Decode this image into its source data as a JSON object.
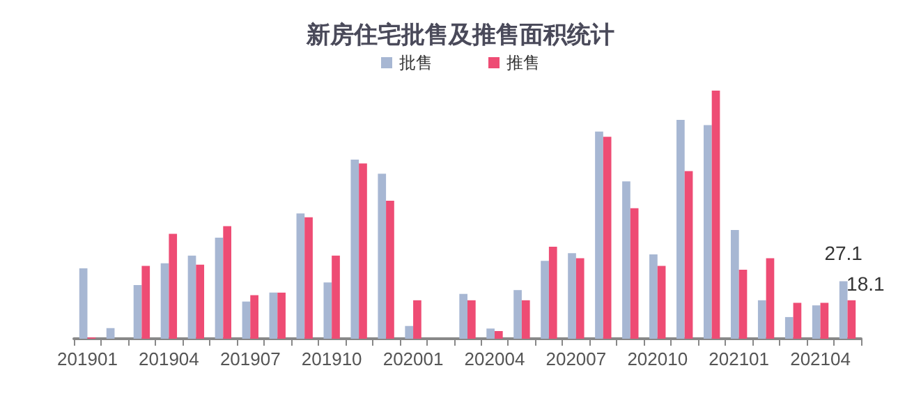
{
  "chart_data": {
    "type": "bar",
    "title": "新房住宅批售及推售面积统计",
    "categories": [
      "201901",
      null,
      null,
      "201904",
      null,
      null,
      "201907",
      null,
      null,
      "201910",
      null,
      null,
      "202001",
      null,
      null,
      "202004",
      null,
      null,
      "202007",
      null,
      null,
      "202010",
      null,
      null,
      "202101",
      null,
      null,
      "202104",
      null
    ],
    "series": [
      {
        "name": "批售",
        "color": "#a7b7d3",
        "values": [
          33.1,
          5.0,
          25.3,
          35.5,
          39.1,
          47.6,
          17.5,
          21.7,
          59.0,
          26.5,
          84.3,
          77.7,
          6.0,
          null,
          21.1,
          4.8,
          22.9,
          36.7,
          40.3,
          97.5,
          74.1,
          39.7,
          103.0,
          100.6,
          51.2,
          18.1,
          10.2,
          15.7,
          27.1
        ],
        "value_labels": [
          null,
          null,
          null,
          null,
          null,
          null,
          null,
          null,
          null,
          null,
          null,
          null,
          null,
          null,
          null,
          null,
          null,
          null,
          null,
          null,
          null,
          null,
          null,
          null,
          null,
          null,
          null,
          null,
          "27.1"
        ]
      },
      {
        "name": "推售",
        "color": "#ee4c74",
        "values": [
          0.6,
          0,
          34.3,
          49.4,
          34.9,
          53.0,
          20.5,
          21.7,
          57.2,
          39.1,
          82.5,
          65.0,
          18.1,
          null,
          18.1,
          3.6,
          18.1,
          43.3,
          37.9,
          95.1,
          61.4,
          34.3,
          78.9,
          116.8,
          32.5,
          37.9,
          16.9,
          16.9,
          18.1
        ],
        "value_labels": [
          null,
          null,
          null,
          null,
          null,
          null,
          null,
          null,
          null,
          null,
          null,
          null,
          null,
          null,
          null,
          null,
          null,
          null,
          null,
          null,
          null,
          null,
          null,
          null,
          null,
          null,
          null,
          null,
          "18.1"
        ]
      }
    ],
    "legend": "top",
    "grid": false,
    "tick_labels": "x"
  }
}
